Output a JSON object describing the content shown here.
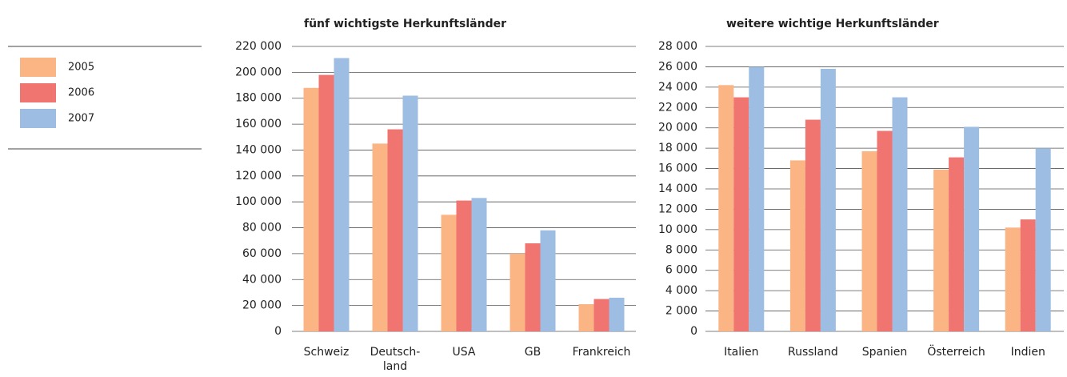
{
  "chart_data": [
    {
      "type": "bar",
      "title": "fünf wichtigste Herkunftsländer",
      "categories": [
        "Schweiz",
        "Deutsch-\nland",
        "USA",
        "GB",
        "Frankreich"
      ],
      "series": [
        {
          "name": "2005",
          "color": "#fbb584",
          "values": [
            188000,
            145000,
            90000,
            60000,
            21000
          ]
        },
        {
          "name": "2006",
          "color": "#f07470",
          "values": [
            198000,
            156000,
            101000,
            68000,
            25000
          ]
        },
        {
          "name": "2007",
          "color": "#9dbde3",
          "values": [
            211000,
            182000,
            103000,
            78000,
            26000
          ]
        }
      ],
      "ylim": [
        0,
        220000
      ],
      "yticks": [
        0,
        {
          "value": 20000,
          "label": "20 000"
        },
        {
          "value": 40000,
          "label": "40 000"
        },
        {
          "value": 60000,
          "label": "60 000"
        },
        {
          "value": 80000,
          "label": "80 000"
        },
        {
          "value": 100000,
          "label": "100 000"
        },
        {
          "value": 120000,
          "label": "120 000"
        },
        {
          "value": 140000,
          "label": "140 000"
        },
        {
          "value": 160000,
          "label": "160 000"
        },
        {
          "value": 180000,
          "label": "180 000"
        },
        {
          "value": 200000,
          "label": "200 000"
        },
        {
          "value": 220000,
          "label": "220 000"
        }
      ],
      "grid": true
    },
    {
      "type": "bar",
      "title": "weitere wichtige Herkunftsländer",
      "categories": [
        "Italien",
        "Russland",
        "Spanien",
        "Österreich",
        "Indien"
      ],
      "series": [
        {
          "color": "#fbb584",
          "values": [
            24200,
            16800,
            17700,
            15900,
            10200
          ]
        },
        {
          "color": "#f07470",
          "values": [
            23000,
            20800,
            19700,
            17100,
            11000
          ]
        },
        {
          "color": "#9dbde3",
          "values": [
            26000,
            25800,
            23000,
            20100,
            18000
          ]
        }
      ],
      "ylim": [
        0,
        28000
      ],
      "yticks": [
        0,
        {
          "value": 2000,
          "label": "2 000"
        },
        {
          "value": 4000,
          "label": "4 000"
        },
        {
          "value": 6000,
          "label": "6 000"
        },
        {
          "value": 8000,
          "label": "8 000"
        },
        {
          "value": 10000,
          "label": "10 000"
        },
        {
          "value": 12000,
          "label": "12 000"
        },
        {
          "value": 14000,
          "label": "14 000"
        },
        {
          "value": 16000,
          "label": "16 000"
        },
        {
          "value": 18000,
          "label": "18 000"
        },
        {
          "value": 20000,
          "label": "20 000"
        },
        {
          "value": 22000,
          "label": "22 000"
        },
        {
          "value": 24000,
          "label": "24 000"
        },
        {
          "value": 26000,
          "label": "26 000"
        },
        {
          "value": 28000,
          "label": "28 000"
        }
      ],
      "grid": true
    }
  ]
}
